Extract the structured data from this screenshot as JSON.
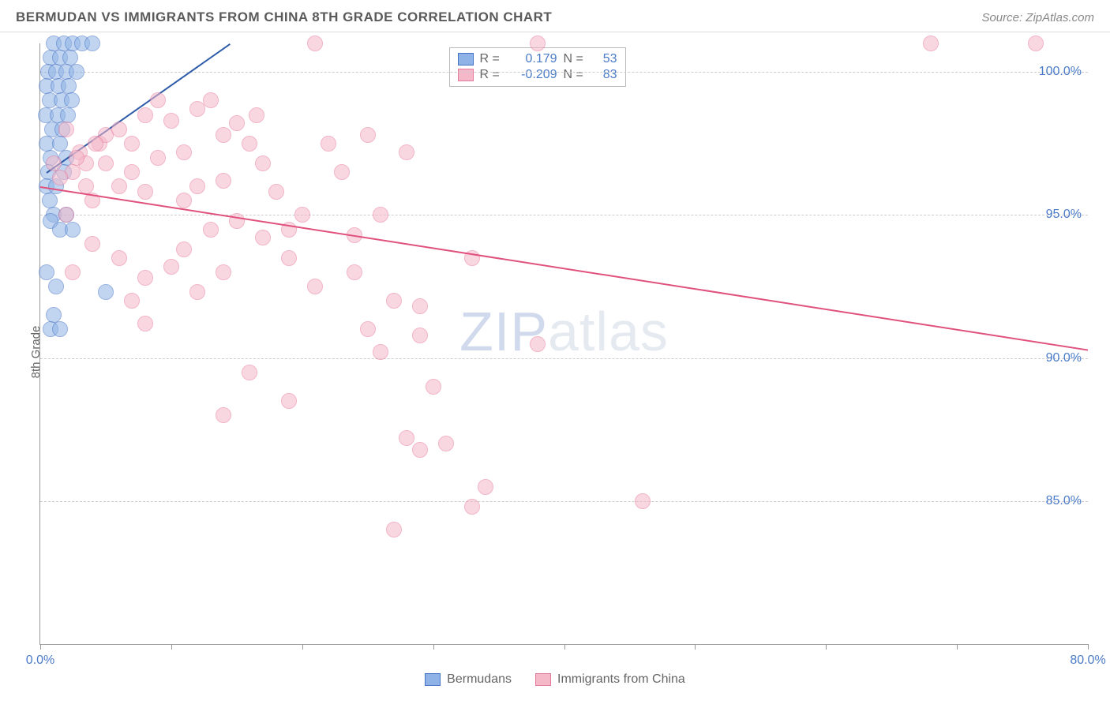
{
  "title": "BERMUDAN VS IMMIGRANTS FROM CHINA 8TH GRADE CORRELATION CHART",
  "source": "Source: ZipAtlas.com",
  "yaxis_label": "8th Grade",
  "watermark_a": "ZIP",
  "watermark_b": "atlas",
  "chart": {
    "type": "scatter",
    "xlim": [
      0,
      80
    ],
    "ylim": [
      80,
      101
    ],
    "xticks": [
      0,
      10,
      20,
      30,
      40,
      50,
      60,
      70,
      80
    ],
    "xtick_labels": {
      "0": "0.0%",
      "80": "80.0%"
    },
    "yticks": [
      85,
      90,
      95,
      100
    ],
    "ytick_labels": [
      "85.0%",
      "90.0%",
      "95.0%",
      "100.0%"
    ],
    "background_color": "#ffffff",
    "grid_color": "#cccccc",
    "axis_color": "#999999",
    "tick_label_color": "#4a7bc8",
    "marker_radius": 10,
    "marker_opacity": 0.55,
    "series": [
      {
        "name": "Bermudans",
        "fill_color": "#8fb3e6",
        "stroke_color": "#4472c4",
        "line_color": "#2e5ca8",
        "R": "0.179",
        "N": "53",
        "trend": {
          "x1": 0.5,
          "y1": 96.5,
          "x2": 14.5,
          "y2": 101
        },
        "points": [
          [
            1.0,
            101
          ],
          [
            1.8,
            101
          ],
          [
            2.5,
            101
          ],
          [
            3.2,
            101
          ],
          [
            4.0,
            101
          ],
          [
            0.8,
            100.5
          ],
          [
            1.5,
            100.5
          ],
          [
            2.3,
            100.5
          ],
          [
            0.6,
            100
          ],
          [
            1.2,
            100
          ],
          [
            2.0,
            100
          ],
          [
            2.8,
            100
          ],
          [
            0.5,
            99.5
          ],
          [
            1.4,
            99.5
          ],
          [
            2.2,
            99.5
          ],
          [
            0.7,
            99
          ],
          [
            1.6,
            99
          ],
          [
            2.4,
            99
          ],
          [
            0.4,
            98.5
          ],
          [
            1.3,
            98.5
          ],
          [
            2.1,
            98.5
          ],
          [
            0.9,
            98
          ],
          [
            1.7,
            98
          ],
          [
            0.5,
            97.5
          ],
          [
            1.5,
            97.5
          ],
          [
            0.8,
            97
          ],
          [
            2.0,
            97
          ],
          [
            0.6,
            96.5
          ],
          [
            1.8,
            96.5
          ],
          [
            0.5,
            96
          ],
          [
            1.2,
            96
          ],
          [
            0.7,
            95.5
          ],
          [
            1.0,
            95
          ],
          [
            2.0,
            95
          ],
          [
            0.8,
            94.8
          ],
          [
            1.5,
            94.5
          ],
          [
            2.5,
            94.5
          ],
          [
            0.5,
            93
          ],
          [
            1.2,
            92.5
          ],
          [
            5.0,
            92.3
          ],
          [
            1.0,
            91.5
          ],
          [
            0.8,
            91
          ],
          [
            1.5,
            91
          ]
        ]
      },
      {
        "name": "Immigrants from China",
        "fill_color": "#f5b8c9",
        "stroke_color": "#e67a9c",
        "line_color": "#e0517d",
        "R": "-0.209",
        "N": "83",
        "trend": {
          "x1": 0,
          "y1": 96.0,
          "x2": 80,
          "y2": 90.3
        },
        "points": [
          [
            1.0,
            96.8
          ],
          [
            2.5,
            96.5
          ],
          [
            1.5,
            96.3
          ],
          [
            21,
            101
          ],
          [
            38,
            101
          ],
          [
            68,
            101
          ],
          [
            76,
            101
          ],
          [
            3,
            97.2
          ],
          [
            4.5,
            97.5
          ],
          [
            5,
            97.8
          ],
          [
            6,
            98
          ],
          [
            7,
            97.5
          ],
          [
            8,
            98.5
          ],
          [
            9,
            99
          ],
          [
            10,
            98.3
          ],
          [
            11,
            97.2
          ],
          [
            12,
            98.7
          ],
          [
            13,
            99
          ],
          [
            14,
            97.8
          ],
          [
            15,
            98.2
          ],
          [
            16,
            97.5
          ],
          [
            16.5,
            98.5
          ],
          [
            5,
            96.8
          ],
          [
            7,
            96.5
          ],
          [
            9,
            97
          ],
          [
            6,
            96
          ],
          [
            4,
            95.5
          ],
          [
            3.5,
            96.8
          ],
          [
            2,
            95
          ],
          [
            8,
            95.8
          ],
          [
            11,
            95.5
          ],
          [
            14,
            96.2
          ],
          [
            17,
            96.8
          ],
          [
            12,
            96
          ],
          [
            18,
            95.8
          ],
          [
            19,
            94.5
          ],
          [
            20,
            95
          ],
          [
            22,
            97.5
          ],
          [
            23,
            96.5
          ],
          [
            24,
            94.3
          ],
          [
            25,
            97.8
          ],
          [
            26,
            95
          ],
          [
            28,
            97.2
          ],
          [
            15,
            94.8
          ],
          [
            17,
            94.2
          ],
          [
            13,
            94.5
          ],
          [
            11,
            93.8
          ],
          [
            4,
            94
          ],
          [
            6,
            93.5
          ],
          [
            8,
            92.8
          ],
          [
            14,
            93
          ],
          [
            10,
            93.2
          ],
          [
            19,
            93.5
          ],
          [
            2.5,
            93
          ],
          [
            7,
            92
          ],
          [
            12,
            92.3
          ],
          [
            21,
            92.5
          ],
          [
            27,
            92
          ],
          [
            8,
            91.2
          ],
          [
            25,
            91
          ],
          [
            29,
            91.8
          ],
          [
            33,
            93.5
          ],
          [
            24,
            93
          ],
          [
            16,
            89.5
          ],
          [
            26,
            90.2
          ],
          [
            29,
            90.8
          ],
          [
            30,
            89
          ],
          [
            38,
            90.5
          ],
          [
            14,
            88
          ],
          [
            19,
            88.5
          ],
          [
            28,
            87.2
          ],
          [
            29,
            86.8
          ],
          [
            31,
            87
          ],
          [
            33,
            84.8
          ],
          [
            34,
            85.5
          ],
          [
            46,
            85
          ],
          [
            27,
            84
          ],
          [
            2,
            98
          ],
          [
            2.8,
            97
          ],
          [
            3.5,
            96
          ],
          [
            4.2,
            97.5
          ]
        ]
      }
    ]
  }
}
